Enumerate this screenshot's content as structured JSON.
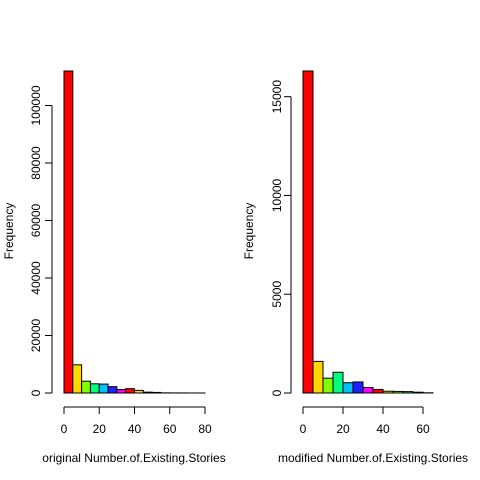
{
  "chart_data": [
    {
      "type": "bar",
      "title": "",
      "xlabel": "original Number.of.Existing.Stories",
      "ylabel": "Frequency",
      "x_bin_edges": [
        0,
        5,
        10,
        15,
        20,
        25,
        30,
        35,
        40,
        45,
        50,
        55,
        60,
        65,
        70,
        75,
        80
      ],
      "values": [
        112000,
        9800,
        4100,
        3200,
        3100,
        2200,
        1200,
        1500,
        900,
        300,
        200,
        50,
        30,
        20,
        10,
        5
      ],
      "colors": [
        "#FF0000",
        "#FFD700",
        "#80FF00",
        "#00FF80",
        "#00C0FF",
        "#2020FF",
        "#FF00FF",
        "#FF0000",
        "#FFD700",
        "#80FF00",
        "#00FF80",
        "#00C0FF",
        "#2020FF",
        "#FF00FF",
        "#FF0000",
        "#FFD700"
      ],
      "xlim": [
        0,
        80
      ],
      "ylim": [
        0,
        112000
      ],
      "x_ticks": [
        "0",
        "20",
        "40",
        "60",
        "80"
      ],
      "y_ticks": [
        "0",
        "20000",
        "40000",
        "60000",
        "80000",
        "100000"
      ]
    },
    {
      "type": "bar",
      "title": "",
      "xlabel": "modified Number.of.Existing.Stories",
      "ylabel": "Frequency",
      "x_bin_edges": [
        0,
        5,
        10,
        15,
        20,
        25,
        30,
        35,
        40,
        45,
        50,
        55,
        60,
        65
      ],
      "values": [
        16300,
        1600,
        750,
        1050,
        520,
        560,
        280,
        180,
        90,
        80,
        70,
        40,
        10
      ],
      "colors": [
        "#FF0000",
        "#FFD700",
        "#80FF00",
        "#00FF80",
        "#00C0FF",
        "#2020FF",
        "#FF00FF",
        "#FF0000",
        "#FFD700",
        "#80FF00",
        "#00FF80",
        "#00C0FF",
        "#2020FF"
      ],
      "xlim": [
        0,
        65
      ],
      "ylim": [
        0,
        16300
      ],
      "x_ticks": [
        "0",
        "20",
        "40",
        "60"
      ],
      "y_ticks": [
        "0",
        "5000",
        "10000",
        "15000"
      ]
    }
  ]
}
